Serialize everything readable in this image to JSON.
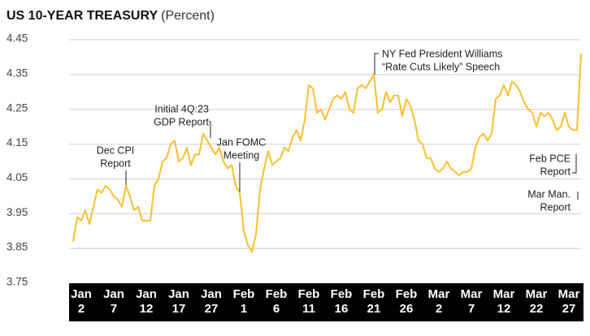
{
  "chart_data": {
    "type": "line",
    "title": "US 10-YEAR TREASURY",
    "subtitle": "(Percent)",
    "color": "#fbbf2e",
    "grid": true,
    "ylim": [
      3.75,
      4.45
    ],
    "yticks": [
      3.75,
      3.85,
      3.95,
      4.05,
      4.15,
      4.25,
      4.35,
      4.45
    ],
    "categories": [
      null,
      null,
      "Jan 2",
      null,
      null,
      null,
      null,
      null,
      null,
      null,
      "Jan 7",
      null,
      null,
      null,
      null,
      null,
      null,
      null,
      "Jan 12",
      null,
      null,
      null,
      null,
      null,
      null,
      null,
      "Jan 17",
      null,
      null,
      null,
      null,
      null,
      null,
      null,
      "Jan 27",
      null,
      null,
      null,
      null,
      null,
      null,
      null,
      "Feb 1",
      null,
      null,
      null,
      null,
      null,
      null,
      null,
      "Feb 6",
      null,
      null,
      null,
      null,
      null,
      null,
      null,
      "Feb 11",
      null,
      null,
      null,
      null,
      null,
      null,
      null,
      "Feb 16",
      null,
      null,
      null,
      null,
      null,
      null,
      null,
      "Feb 21",
      null,
      null,
      null,
      null,
      null,
      null,
      null,
      "Feb 26",
      null,
      null,
      null,
      null,
      null,
      null,
      null,
      "Mar 2",
      null,
      null,
      null,
      null,
      null,
      null,
      null,
      "Mar 7",
      null,
      null,
      null,
      null,
      null,
      null,
      null,
      "Mar 12",
      null,
      null,
      null,
      null,
      null,
      null,
      null,
      "Mar 22",
      null,
      null,
      null,
      null,
      null,
      null,
      null,
      "Mar 27",
      null,
      null,
      null
    ],
    "values": [
      3.87,
      3.94,
      3.93,
      3.96,
      3.92,
      3.97,
      4.02,
      4.01,
      4.03,
      4.02,
      4.0,
      3.99,
      3.97,
      4.03,
      4.0,
      3.96,
      3.97,
      3.93,
      3.93,
      3.93,
      4.03,
      4.05,
      4.1,
      4.11,
      4.15,
      4.16,
      4.1,
      4.11,
      4.14,
      4.09,
      4.12,
      4.12,
      4.18,
      4.16,
      4.14,
      4.12,
      4.14,
      4.1,
      4.08,
      4.09,
      4.03,
      4.01,
      3.9,
      3.86,
      3.84,
      3.89,
      4.02,
      4.08,
      4.13,
      4.09,
      4.1,
      4.11,
      4.14,
      4.13,
      4.17,
      4.19,
      4.16,
      4.22,
      4.32,
      4.31,
      4.24,
      4.25,
      4.22,
      4.25,
      4.28,
      4.29,
      4.28,
      4.3,
      4.25,
      4.24,
      4.31,
      4.32,
      4.31,
      4.33,
      4.35,
      4.24,
      4.25,
      4.3,
      4.27,
      4.29,
      4.29,
      4.23,
      4.28,
      4.26,
      4.22,
      4.16,
      4.15,
      4.11,
      4.11,
      4.08,
      4.07,
      4.08,
      4.1,
      4.08,
      4.07,
      4.06,
      4.07,
      4.07,
      4.08,
      4.14,
      4.17,
      4.18,
      4.16,
      4.18,
      4.28,
      4.29,
      4.32,
      4.29,
      4.33,
      4.32,
      4.3,
      4.27,
      4.25,
      4.24,
      4.2,
      4.24,
      4.23,
      4.24,
      4.22,
      4.19,
      4.2,
      4.24,
      4.2,
      4.19,
      4.19,
      4.41
    ],
    "annotations": [
      [
        "Dec CPI",
        "Report"
      ],
      [
        "Initial 4Q:23",
        "GDP Report"
      ],
      [
        "Jan FOMC",
        "Meeting"
      ],
      [
        "NY Fed President Williams",
        "“Rate Cuts Likely” Speech"
      ],
      [
        "Feb PCE",
        "Report"
      ],
      [
        "Mar Man.",
        "Report"
      ]
    ]
  }
}
